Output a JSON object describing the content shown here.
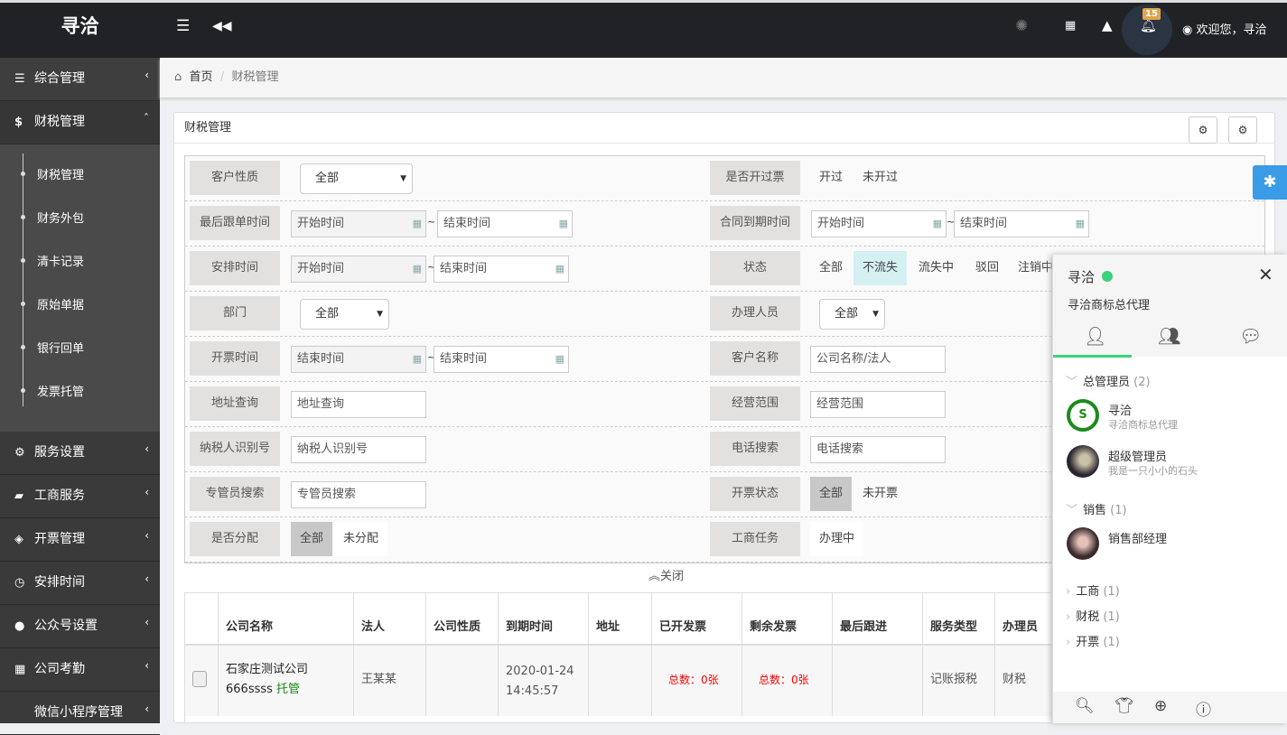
{
  "app": {
    "logo": "寻洽",
    "welcome": "欢迎您，寻洽",
    "notif_count": "15"
  },
  "sidebar": {
    "items": [
      {
        "label": "综合管理",
        "icon": "sliders-icon"
      },
      {
        "label": "财税管理",
        "icon": "dollar-icon"
      },
      {
        "label": "服务设置",
        "icon": "gear-icon"
      },
      {
        "label": "工商服务",
        "icon": "briefcase-icon"
      },
      {
        "label": "开票管理",
        "icon": "ticket-icon"
      },
      {
        "label": "安排时间",
        "icon": "clock-icon"
      },
      {
        "label": "公众号设置",
        "icon": "wechat-icon"
      },
      {
        "label": "公司考勤",
        "icon": "calendar-icon"
      },
      {
        "label": "微信小程序管理",
        "icon": ""
      }
    ],
    "sub": [
      "财税管理",
      "财务外包",
      "清卡记录",
      "原始单据",
      "银行回单",
      "发票托管"
    ]
  },
  "breadcrumb": {
    "home": "首页",
    "current": "财税管理"
  },
  "panel": {
    "title": "财税管理"
  },
  "form": {
    "customer_type": {
      "label": "客户性质",
      "value": "全部"
    },
    "invoiced": {
      "label": "是否开过票",
      "options": [
        "开过",
        "未开过"
      ]
    },
    "last_follow": {
      "label": "最后跟单时间",
      "start": "开始时间",
      "end": "结束时间"
    },
    "contract_expire": {
      "label": "合同到期时间",
      "start": "开始时间",
      "end": "结束时间"
    },
    "schedule": {
      "label": "安排时间",
      "start": "开始时间",
      "end": "结束时间"
    },
    "status": {
      "label": "状态",
      "options": [
        "全部",
        "不流失",
        "流失中",
        "驳回",
        "注销中"
      ],
      "selected": "不流失"
    },
    "dept": {
      "label": "部门",
      "value": "全部"
    },
    "handler": {
      "label": "办理人员",
      "value": "全部"
    },
    "invoice_time": {
      "label": "开票时间",
      "start": "结束时间",
      "end": "结束时间"
    },
    "customer_name": {
      "label": "客户名称",
      "placeholder": "公司名称/法人"
    },
    "address": {
      "label": "地址查询",
      "placeholder": "地址查询"
    },
    "scope": {
      "label": "经营范围",
      "placeholder": "经营范围"
    },
    "taxid": {
      "label": "纳税人识别号",
      "placeholder": "纳税人识别号"
    },
    "phone": {
      "label": "电话搜索",
      "placeholder": "电话搜索"
    },
    "manager": {
      "label": "专管员搜索",
      "placeholder": "专管员搜索"
    },
    "invoice_status": {
      "label": "开票状态",
      "options": [
        "全部",
        "未开票"
      ]
    },
    "assigned": {
      "label": "是否分配",
      "options": [
        "全部",
        "未分配"
      ]
    },
    "biz_task": {
      "label": "工商任务",
      "options": [
        "办理中"
      ]
    },
    "collapse": "关闭"
  },
  "table": {
    "headers": [
      "公司名称",
      "法人",
      "公司性质",
      "到期时间",
      "地址",
      "已开发票",
      "剩余发票",
      "最后跟进",
      "服务类型",
      "办理员"
    ],
    "rows": [
      {
        "company": "石家庄测试公司",
        "company2": "666ssss",
        "tag": "托管",
        "legal": "王某某",
        "type": "",
        "expire_date": "2020-01-24",
        "expire_time": "14:45:57",
        "address": "",
        "issued": "总数：0张",
        "remaining": "总数：0张",
        "last": "",
        "service": "记账报税",
        "handler": "财税"
      }
    ]
  },
  "chat": {
    "name": "寻洽",
    "sign": "寻洽商标总代理",
    "online_color": "#3cd27c",
    "groups": [
      {
        "name": "总管理员",
        "count": "(2)",
        "members": [
          {
            "name": "寻洽",
            "sign": "寻洽商标总代理"
          },
          {
            "name": "超级管理员",
            "sign": "我是一只小小的石头"
          }
        ]
      },
      {
        "name": "销售",
        "count": "(1)",
        "members": [
          {
            "name": "销售部经理",
            "sign": ""
          }
        ]
      },
      {
        "name": "工商",
        "count": "(1)"
      },
      {
        "name": "财税",
        "count": "(1)"
      },
      {
        "name": "开票",
        "count": "(1)"
      }
    ]
  }
}
